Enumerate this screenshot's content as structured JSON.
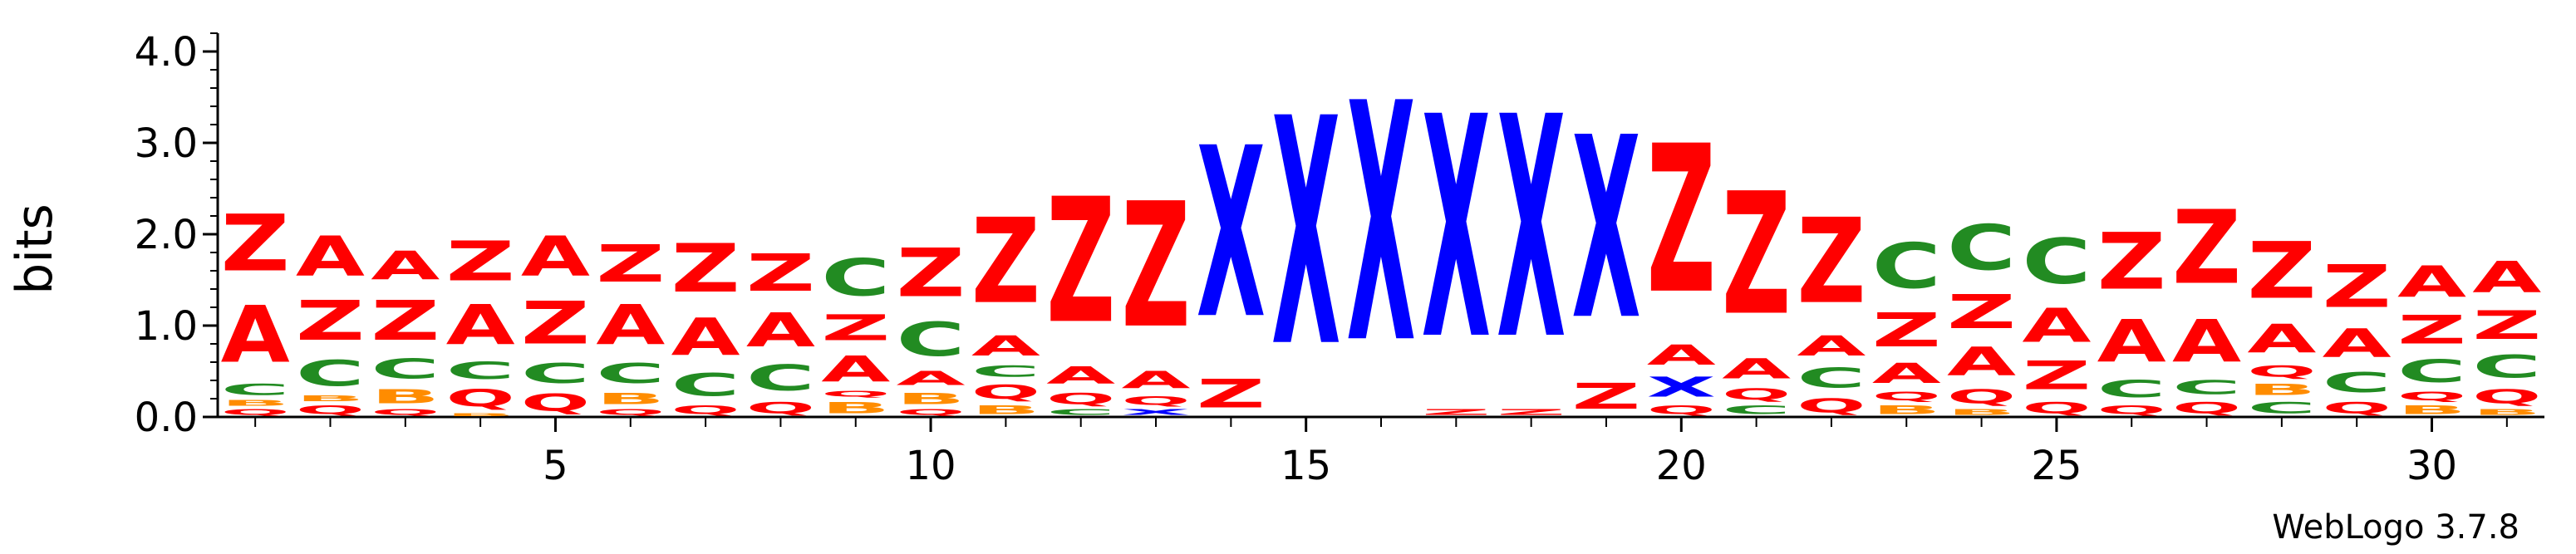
{
  "chart_data": {
    "type": "sequence-logo",
    "ylabel": "bits",
    "ylim": [
      0,
      4.2
    ],
    "y_ticks": [
      "0.0",
      "1.0",
      "2.0",
      "3.0",
      "4.0"
    ],
    "x_range": [
      1,
      31
    ],
    "x_ticks": [
      "5",
      "10",
      "15",
      "20",
      "25",
      "30"
    ],
    "credit": "WebLogo 3.7.8",
    "colors": {
      "Z": "#ff0000",
      "A": "#ff0000",
      "Q": "#ff0000",
      "C": "#228b22",
      "B": "#ff8c00",
      "X": "#0000ff"
    },
    "positions": [
      {
        "pos": 1,
        "stack": [
          [
            "Q",
            0.1
          ],
          [
            "B",
            0.1
          ],
          [
            "C",
            0.2
          ],
          [
            "A",
            1.0
          ],
          [
            "Z",
            1.0
          ]
        ]
      },
      {
        "pos": 2,
        "stack": [
          [
            "Q",
            0.15
          ],
          [
            "B",
            0.1
          ],
          [
            "C",
            0.45
          ],
          [
            "Z",
            0.7
          ],
          [
            "A",
            0.7
          ]
        ]
      },
      {
        "pos": 3,
        "stack": [
          [
            "Q",
            0.1
          ],
          [
            "B",
            0.25
          ],
          [
            "C",
            0.35
          ],
          [
            "Z",
            0.7
          ],
          [
            "A",
            0.5
          ]
        ]
      },
      {
        "pos": 4,
        "stack": [
          [
            "B",
            0.05
          ],
          [
            "Q",
            0.3
          ],
          [
            "C",
            0.3
          ],
          [
            "A",
            0.7
          ],
          [
            "Z",
            0.7
          ]
        ]
      },
      {
        "pos": 5,
        "stack": [
          [
            "Q",
            0.3
          ],
          [
            "C",
            0.35
          ],
          [
            "Z",
            0.75
          ],
          [
            "A",
            0.7
          ]
        ]
      },
      {
        "pos": 6,
        "stack": [
          [
            "Q",
            0.1
          ],
          [
            "B",
            0.2
          ],
          [
            "C",
            0.35
          ],
          [
            "A",
            0.7
          ],
          [
            "Z",
            0.65
          ]
        ]
      },
      {
        "pos": 7,
        "stack": [
          [
            "Q",
            0.15
          ],
          [
            "C",
            0.4
          ],
          [
            "A",
            0.65
          ],
          [
            "Z",
            0.85
          ]
        ]
      },
      {
        "pos": 8,
        "stack": [
          [
            "Q",
            0.2
          ],
          [
            "C",
            0.45
          ],
          [
            "A",
            0.6
          ],
          [
            "Z",
            0.65
          ]
        ]
      },
      {
        "pos": 9,
        "stack": [
          [
            "B",
            0.2
          ],
          [
            "Q",
            0.1
          ],
          [
            "A",
            0.45
          ],
          [
            "Z",
            0.45
          ],
          [
            "C",
            0.65
          ]
        ]
      },
      {
        "pos": 10,
        "stack": [
          [
            "Q",
            0.1
          ],
          [
            "B",
            0.2
          ],
          [
            "A",
            0.25
          ],
          [
            "C",
            0.6
          ],
          [
            "Z",
            0.85
          ]
        ]
      },
      {
        "pos": 11,
        "stack": [
          [
            "B",
            0.15
          ],
          [
            "Q",
            0.25
          ],
          [
            "C",
            0.2
          ],
          [
            "A",
            0.35
          ],
          [
            "Z",
            1.5
          ]
        ]
      },
      {
        "pos": 12,
        "stack": [
          [
            "C",
            0.1
          ],
          [
            "Q",
            0.2
          ],
          [
            "A",
            0.3
          ],
          [
            "Z",
            2.2
          ]
        ]
      },
      {
        "pos": 13,
        "stack": [
          [
            "X",
            0.1
          ],
          [
            "Q",
            0.15
          ],
          [
            "A",
            0.3
          ],
          [
            "Z",
            2.2
          ]
        ]
      },
      {
        "pos": 14,
        "stack": [
          [
            "Z",
            0.5
          ],
          [
            "X",
            3.0
          ]
        ]
      },
      {
        "pos": 15,
        "stack": [
          [
            "X",
            4.0
          ]
        ]
      },
      {
        "pos": 16,
        "stack": [
          [
            "X",
            4.2
          ]
        ]
      },
      {
        "pos": 17,
        "stack": [
          [
            "Z",
            0.1
          ],
          [
            "X",
            3.9
          ]
        ]
      },
      {
        "pos": 18,
        "stack": [
          [
            "Z",
            0.1
          ],
          [
            "X",
            3.9
          ]
        ]
      },
      {
        "pos": 19,
        "stack": [
          [
            "Z",
            0.45
          ],
          [
            "X",
            3.2
          ]
        ]
      },
      {
        "pos": 20,
        "stack": [
          [
            "Q",
            0.15
          ],
          [
            "X",
            0.35
          ],
          [
            "A",
            0.35
          ],
          [
            "Z",
            2.6
          ]
        ]
      },
      {
        "pos": 21,
        "stack": [
          [
            "C",
            0.15
          ],
          [
            "Q",
            0.2
          ],
          [
            "A",
            0.35
          ],
          [
            "Z",
            2.15
          ]
        ]
      },
      {
        "pos": 22,
        "stack": [
          [
            "Q",
            0.25
          ],
          [
            "C",
            0.35
          ],
          [
            "A",
            0.35
          ],
          [
            "Z",
            1.5
          ]
        ]
      },
      {
        "pos": 23,
        "stack": [
          [
            "B",
            0.15
          ],
          [
            "Q",
            0.15
          ],
          [
            "A",
            0.35
          ],
          [
            "Z",
            0.6
          ],
          [
            "C",
            0.8
          ]
        ]
      },
      {
        "pos": 24,
        "stack": [
          [
            "B",
            0.1
          ],
          [
            "Q",
            0.25
          ],
          [
            "A",
            0.5
          ],
          [
            "Z",
            0.6
          ],
          [
            "C",
            0.8
          ]
        ]
      },
      {
        "pos": 25,
        "stack": [
          [
            "Q",
            0.2
          ],
          [
            "Z",
            0.5
          ],
          [
            "A",
            0.6
          ],
          [
            "C",
            0.8
          ]
        ]
      },
      {
        "pos": 26,
        "stack": [
          [
            "Q",
            0.15
          ],
          [
            "C",
            0.3
          ],
          [
            "A",
            0.75
          ],
          [
            "Z",
            1.0
          ]
        ]
      },
      {
        "pos": 27,
        "stack": [
          [
            "Q",
            0.2
          ],
          [
            "C",
            0.25
          ],
          [
            "A",
            0.75
          ],
          [
            "Z",
            1.3
          ]
        ]
      },
      {
        "pos": 28,
        "stack": [
          [
            "C",
            0.2
          ],
          [
            "B",
            0.2
          ],
          [
            "Q",
            0.2
          ],
          [
            "A",
            0.5
          ],
          [
            "Z",
            1.0
          ]
        ]
      },
      {
        "pos": 29,
        "stack": [
          [
            "Q",
            0.2
          ],
          [
            "C",
            0.35
          ],
          [
            "A",
            0.5
          ],
          [
            "Z",
            0.75
          ]
        ]
      },
      {
        "pos": 30,
        "stack": [
          [
            "B",
            0.15
          ],
          [
            "Q",
            0.15
          ],
          [
            "C",
            0.4
          ],
          [
            "Z",
            0.5
          ],
          [
            "A",
            0.55
          ]
        ]
      },
      {
        "pos": 31,
        "stack": [
          [
            "B",
            0.1
          ],
          [
            "Q",
            0.25
          ],
          [
            "C",
            0.4
          ],
          [
            "Z",
            0.5
          ],
          [
            "A",
            0.55
          ]
        ]
      }
    ]
  }
}
